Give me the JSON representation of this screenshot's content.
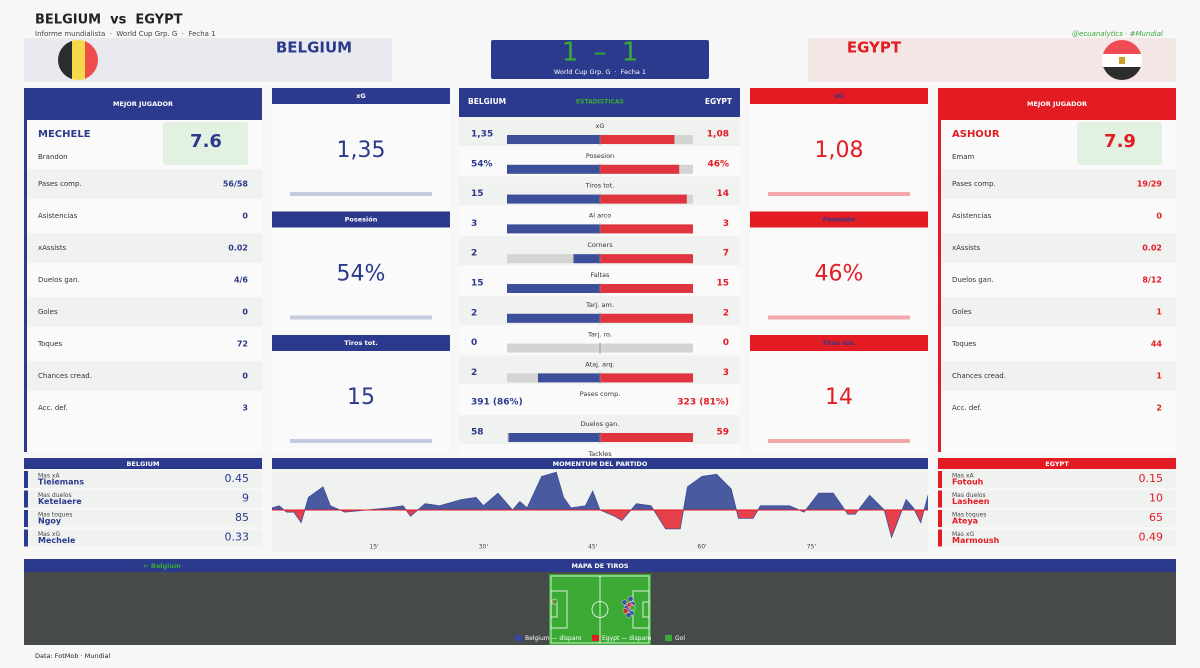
{
  "header": {
    "title": "BELGIUM  vs  EGYPT",
    "subtitle": "Informe mundialista  ·  World Cup Grp. G  ·  Fecha 1",
    "handle": "@ecuanalytics · #Mundial"
  },
  "home": {
    "name": "BELGIUM",
    "color": "#2b3a8c"
  },
  "away": {
    "name": "EGYPT",
    "color": "#e31b23"
  },
  "score": {
    "home": 1,
    "separator": "–",
    "away": 1,
    "competition": "World Cup Grp. G  ·  Fecha 1"
  },
  "best_player_title": "MEJOR JUGADOR",
  "best_players": [
    {
      "surname": "MECHELE",
      "first_name": "Brandon",
      "rating": 7.6,
      "rows": [
        [
          "Pases comp.",
          "56/58"
        ],
        [
          "Asistencias",
          0
        ],
        [
          "xAssists",
          0.02
        ],
        [
          "Duelos gan.",
          "4/6"
        ],
        [
          "Goles",
          0
        ],
        [
          "Toques",
          72
        ],
        [
          "Chances cread.",
          0
        ],
        [
          "Acc. def.",
          3
        ]
      ]
    },
    {
      "surname": "ASHOUR",
      "first_name": "Emam",
      "rating": 7.9,
      "rows": [
        [
          "Pases comp.",
          "19/29"
        ],
        [
          "Asistencias",
          0
        ],
        [
          "xAssists",
          0.02
        ],
        [
          "Duelos gan.",
          "8/12"
        ],
        [
          "Goles",
          1
        ],
        [
          "Toques",
          44
        ],
        [
          "Chances cread.",
          1
        ],
        [
          "Acc. def.",
          2
        ]
      ]
    }
  ],
  "side_panels": [
    [
      {
        "title": "xG",
        "value": {
          "value": 1.35,
          "label": "1,35"
        }
      },
      {
        "title": "Posesión",
        "value": {
          "value": 54,
          "label": "54%"
        }
      },
      {
        "title": "Tiros tot.",
        "value": 15
      }
    ],
    [
      {
        "title": "xG",
        "value": {
          "value": 1.08,
          "label": "1,08"
        }
      },
      {
        "title": "Posesión",
        "value": {
          "value": 46,
          "label": "46%"
        }
      },
      {
        "title": "Tiros tot.",
        "value": 14
      }
    ]
  ],
  "stats": {
    "title": "ESTADISTICAS",
    "rows": [
      {
        "label": "xG",
        "home": {
          "value": 1.35,
          "label": "1,35"
        },
        "away": {
          "value": 1.08,
          "label": "1,08"
        }
      },
      {
        "label": "Posesion",
        "home": {
          "value": 54,
          "label": "54%"
        },
        "away": {
          "value": 46,
          "label": "46%"
        }
      },
      {
        "label": "Tiros tot.",
        "home": 15,
        "away": 14
      },
      {
        "label": "Al arco",
        "home": 3,
        "away": 3
      },
      {
        "label": "Corners",
        "home": 2,
        "away": 7
      },
      {
        "label": "Faltas",
        "home": 15,
        "away": 15
      },
      {
        "label": "Tarj. am.",
        "home": 2,
        "away": 2
      },
      {
        "label": "Tarj. ro.",
        "home": 0,
        "away": 0
      },
      {
        "label": "Ataj. arq.",
        "home": 2,
        "away": 3
      },
      {
        "label": "Pases comp.",
        "home": "391 (86%)",
        "away": "323 (81%)"
      },
      {
        "label": "Duelos gan.",
        "home": 58,
        "away": 59
      },
      {
        "label": "Tackles"
      }
    ]
  },
  "leaders": [
    [
      {
        "label": "Mas xA",
        "player": "Tielemans",
        "value": 0.45
      },
      {
        "label": "Mas duelos",
        "player": "Ketelaere",
        "value": 9
      },
      {
        "label": "Mas toques",
        "player": "Ngoy",
        "value": 85
      },
      {
        "label": "Mas xG",
        "player": "Mechele",
        "value": 0.33
      }
    ],
    [
      {
        "label": "Mas xA",
        "player": "Fotouh",
        "value": 0.15
      },
      {
        "label": "Mas duelos",
        "player": "Lasheen",
        "value": 10
      },
      {
        "label": "Mas toques",
        "player": "Ateya",
        "value": 65
      },
      {
        "label": "Mas xG",
        "player": "Marmoush",
        "value": 0.49
      }
    ]
  ],
  "momentum": {
    "type": "area",
    "title": "MOMENTUM DEL PARTIDO",
    "colors": [
      "#4a5aa0",
      "#e8404a"
    ],
    "x": [
      1,
      2,
      3,
      4,
      5,
      6,
      8,
      9,
      11,
      14,
      17,
      19,
      20,
      22,
      24,
      27,
      29,
      30,
      32,
      34,
      35,
      36,
      38,
      40,
      41,
      42,
      44,
      45,
      46,
      48,
      49,
      51,
      53,
      55,
      57,
      58,
      60,
      62,
      64,
      65,
      67,
      68,
      72,
      74,
      76,
      78,
      80,
      81,
      83,
      85,
      86,
      88,
      89,
      90,
      91
    ],
    "values": [
      0.05,
      0.1,
      -0.05,
      -0.05,
      -0.3,
      0.3,
      0.55,
      0.1,
      -0.05,
      0,
      0.05,
      0.1,
      -0.15,
      0.15,
      0.1,
      0.25,
      0.3,
      0.1,
      0.4,
      0,
      0.2,
      0.05,
      0.8,
      0.9,
      0.3,
      0.05,
      0.1,
      0.45,
      0,
      -0.15,
      -0.25,
      0.15,
      0.1,
      -0.45,
      -0.45,
      0.55,
      0.8,
      0.85,
      0.5,
      -0.2,
      -0.2,
      0.1,
      0.1,
      -0.05,
      0.4,
      0.4,
      -0.1,
      -0.1,
      0.35,
      0,
      -0.65,
      0.25,
      0.05,
      -0.3,
      0.35
    ],
    "xlim": [
      1,
      91
    ],
    "ylim": [
      -1,
      1
    ],
    "xticks": [
      {
        "value": 15,
        "label": "15'"
      },
      {
        "value": 30,
        "label": "30'"
      },
      {
        "value": 45,
        "label": "45'"
      },
      {
        "value": 60,
        "label": "60'"
      },
      {
        "value": 75,
        "label": "75'"
      }
    ]
  },
  "shot_map": {
    "type": "scatter",
    "title": "MAPA DE TIROS",
    "direction": "← Belgium",
    "xlim": [
      0,
      100
    ],
    "ylim": [
      0,
      100
    ],
    "series": [
      {
        "name": "Belgium — disparo",
        "color": "#3a45a8",
        "x": [
          74,
          77,
          79,
          80,
          81,
          78,
          76,
          82
        ],
        "y": [
          40,
          45,
          50,
          35,
          55,
          58,
          48,
          42
        ]
      },
      {
        "name": "Egypt — disparo",
        "color": "#e31b23",
        "x": [
          5,
          75,
          79,
          81
        ],
        "y": [
          39,
          52,
          44,
          47
        ]
      },
      {
        "name": "Gol",
        "color": "#3aaa35",
        "x": [
          82,
          6
        ],
        "y": [
          48,
          39
        ]
      }
    ]
  },
  "footer": "Data: FotMob · Mundial"
}
